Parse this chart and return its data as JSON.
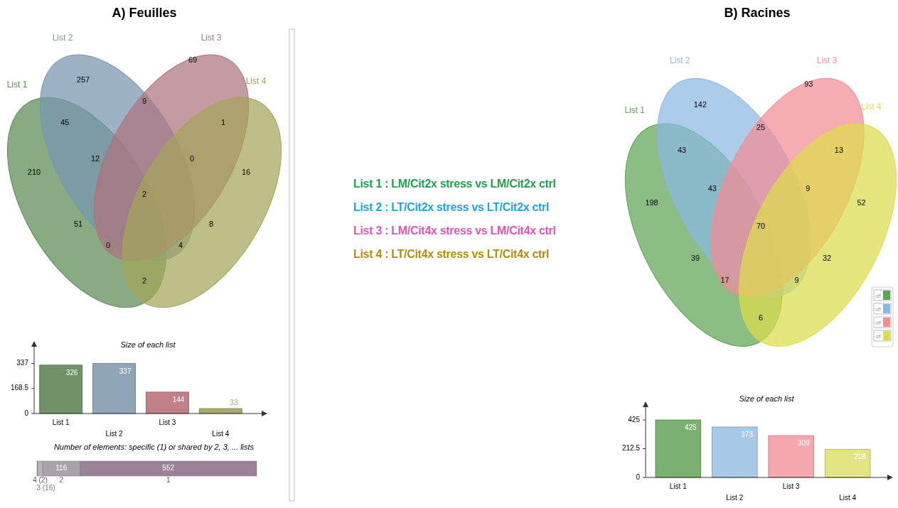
{
  "chart_data": [
    {
      "type": "other",
      "title": "A) Feuilles",
      "categories": [
        "List 1",
        "List 2",
        "List 3",
        "List 4"
      ],
      "colors": [
        "#5b8a55",
        "#7795ae",
        "#ad7380",
        "#a3a55a"
      ],
      "annotations": [
        "257",
        "69",
        "9",
        "45",
        "1",
        "12",
        "0",
        "210",
        "16",
        "2",
        "51",
        "8",
        "0",
        "4",
        "2"
      ]
    },
    {
      "type": "bar",
      "title": "Size of each list",
      "categories": [
        "List 1",
        "List 2",
        "List 3",
        "List 4"
      ],
      "values": [
        326,
        337,
        144,
        33
      ],
      "colors": [
        "#6f9268",
        "#8fa5b8",
        "#c08088",
        "#a8a870"
      ],
      "ylim": [
        0,
        450
      ],
      "yticks": [
        0,
        168.5,
        337
      ],
      "data_labels": true
    },
    {
      "type": "bar",
      "orientation": "horizontal",
      "stacked": true,
      "title": "Number of elements: specific (1) or shared by 2, 3, ... lists",
      "categories": [
        null
      ],
      "series": [
        {
          "name": "4 (2)",
          "color": "#8e8e8e",
          "values": [
            2
          ]
        },
        {
          "name": "3 (16)",
          "color": "#b4b4b4",
          "values": [
            16
          ]
        },
        {
          "name": "2",
          "color": "#aaa2aa",
          "values": [
            116
          ],
          "value_labels": [
            "116"
          ]
        },
        {
          "name": "1",
          "color": "#9b8298",
          "values": [
            552
          ],
          "value_labels": [
            "552"
          ]
        }
      ]
    },
    {
      "type": "other",
      "annotations": [
        "List 1 : LM/Cit2x stress vs LM/Cit2x ctrl",
        "List 2 : LT/Cit2x stress vs LT/Cit2x ctrl",
        "List 3 : LM/Cit4x stress vs LM/Cit4x ctrl",
        "List 4 : LT/Cit4x stress vs LT/Cit4x ctrl"
      ],
      "colors": [
        "#23a04b",
        "#1aa6df",
        "#e452b4",
        "#b48a12"
      ]
    },
    {
      "type": "other",
      "title": "B) Racines",
      "categories": [
        "List 1",
        "List 2",
        "List 3",
        "List 4"
      ],
      "colors": [
        "#5ea356",
        "#8ab8e2",
        "#f28c96",
        "#dcdc4c"
      ],
      "annotations": [
        "142",
        "93",
        "25",
        "43",
        "13",
        "43",
        "9",
        "198",
        "52",
        "70",
        "39",
        "32",
        "17",
        "9",
        "6",
        "off",
        "off",
        "off",
        "off"
      ]
    },
    {
      "type": "bar",
      "title": "Size of each list",
      "categories": [
        "List 1",
        "List 2",
        "List 3",
        "List 4"
      ],
      "values": [
        425,
        373,
        309,
        208
      ],
      "colors": [
        "#7ab070",
        "#a8c8e8",
        "#f4a8ae",
        "#e4e480"
      ],
      "ylim": [
        0,
        520
      ],
      "yticks": [
        0,
        212.5,
        425
      ],
      "data_labels": true
    }
  ]
}
